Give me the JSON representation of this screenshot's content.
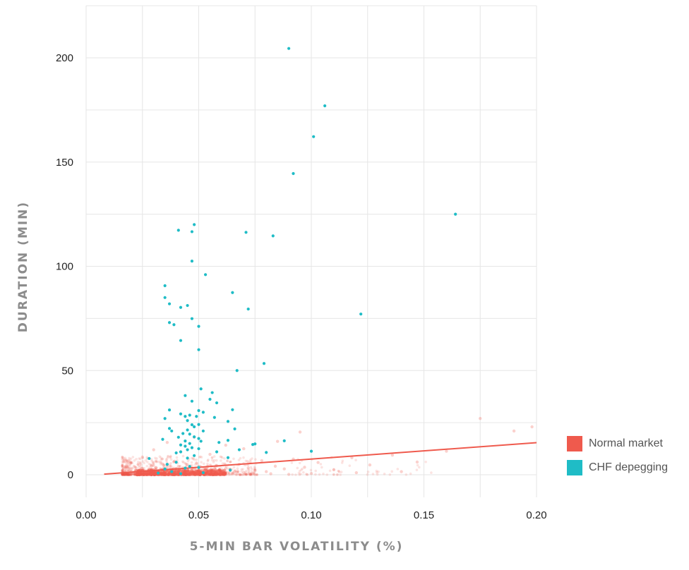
{
  "chart_data": {
    "type": "scatter",
    "title": "",
    "xlabel": "5-MIN BAR VOLATILITY (%)",
    "ylabel": "DURATION (MIN)",
    "xlim": [
      0.0,
      0.2
    ],
    "ylim": [
      -10,
      225
    ],
    "x_ticks": [
      0.0,
      0.05,
      0.1,
      0.15,
      0.2
    ],
    "x_tick_labels": [
      "0.00",
      "0.05",
      "0.10",
      "0.15",
      "0.20"
    ],
    "y_ticks": [
      0,
      50,
      100,
      150,
      200
    ],
    "y_tick_labels": [
      "0",
      "50",
      "100",
      "150",
      "200"
    ],
    "grid": true,
    "legend_position": "right-bottom",
    "series": [
      {
        "name": "Normal market",
        "color": "#ef5a4d",
        "points": [
          [
            0.016,
            0.3
          ],
          [
            0.018,
            0.8
          ],
          [
            0.019,
            0.2
          ],
          [
            0.02,
            1.5
          ],
          [
            0.021,
            0.5
          ],
          [
            0.022,
            2.1
          ],
          [
            0.023,
            0.9
          ],
          [
            0.024,
            0.4
          ],
          [
            0.025,
            1.2
          ],
          [
            0.025,
            3.0
          ],
          [
            0.026,
            0.6
          ],
          [
            0.027,
            1.8
          ],
          [
            0.027,
            0.2
          ],
          [
            0.028,
            2.6
          ],
          [
            0.028,
            0.9
          ],
          [
            0.029,
            1.4
          ],
          [
            0.029,
            4.2
          ],
          [
            0.03,
            0.5
          ],
          [
            0.03,
            2.2
          ],
          [
            0.031,
            1.0
          ],
          [
            0.031,
            3.5
          ],
          [
            0.032,
            0.3
          ],
          [
            0.032,
            1.7
          ],
          [
            0.033,
            2.8
          ],
          [
            0.033,
            0.8
          ],
          [
            0.034,
            1.3
          ],
          [
            0.034,
            5.1
          ],
          [
            0.035,
            0.6
          ],
          [
            0.035,
            2.4
          ],
          [
            0.036,
            1.1
          ],
          [
            0.036,
            3.8
          ],
          [
            0.037,
            0.4
          ],
          [
            0.037,
            1.9
          ],
          [
            0.038,
            2.7
          ],
          [
            0.038,
            0.9
          ],
          [
            0.039,
            1.5
          ],
          [
            0.039,
            6.2
          ],
          [
            0.04,
            0.7
          ],
          [
            0.04,
            2.9
          ],
          [
            0.041,
            1.2
          ],
          [
            0.041,
            4.0
          ],
          [
            0.042,
            0.5
          ],
          [
            0.042,
            2.0
          ],
          [
            0.043,
            3.3
          ],
          [
            0.043,
            1.0
          ],
          [
            0.044,
            1.6
          ],
          [
            0.044,
            0.3
          ],
          [
            0.045,
            2.5
          ],
          [
            0.045,
            4.8
          ],
          [
            0.046,
            0.8
          ],
          [
            0.046,
            1.8
          ],
          [
            0.047,
            3.0
          ],
          [
            0.047,
            0.4
          ],
          [
            0.048,
            2.2
          ],
          [
            0.048,
            1.1
          ],
          [
            0.049,
            5.6
          ],
          [
            0.049,
            0.6
          ],
          [
            0.05,
            1.9
          ],
          [
            0.05,
            3.4
          ],
          [
            0.051,
            0.9
          ],
          [
            0.052,
            2.6
          ],
          [
            0.052,
            1.3
          ],
          [
            0.053,
            0.5
          ],
          [
            0.054,
            3.9
          ],
          [
            0.054,
            1.7
          ],
          [
            0.055,
            0.8
          ],
          [
            0.056,
            2.3
          ],
          [
            0.057,
            1.2
          ],
          [
            0.058,
            4.4
          ],
          [
            0.059,
            0.7
          ],
          [
            0.06,
            2.0
          ],
          [
            0.061,
            1.4
          ],
          [
            0.062,
            3.1
          ],
          [
            0.063,
            0.9
          ],
          [
            0.064,
            2.6
          ],
          [
            0.066,
            1.6
          ],
          [
            0.068,
            5.0
          ],
          [
            0.07,
            1.1
          ],
          [
            0.072,
            3.3
          ],
          [
            0.075,
            2.0
          ],
          [
            0.078,
            6.8
          ],
          [
            0.08,
            1.5
          ],
          [
            0.084,
            4.1
          ],
          [
            0.088,
            2.8
          ],
          [
            0.092,
            7.5
          ],
          [
            0.097,
            3.6
          ],
          [
            0.103,
            5.9
          ],
          [
            0.11,
            2.4
          ],
          [
            0.118,
            8.2
          ],
          [
            0.126,
            4.7
          ],
          [
            0.136,
            9.4
          ],
          [
            0.147,
            6.1
          ],
          [
            0.16,
            11.3
          ],
          [
            0.175,
            27.0
          ],
          [
            0.19,
            21.0
          ],
          [
            0.198,
            23.0
          ],
          [
            0.025,
            8.5
          ],
          [
            0.03,
            12.0
          ],
          [
            0.036,
            15.5
          ],
          [
            0.042,
            11.0
          ],
          [
            0.048,
            18.0
          ],
          [
            0.055,
            9.8
          ],
          [
            0.062,
            14.2
          ],
          [
            0.07,
            12.5
          ],
          [
            0.085,
            16.0
          ],
          [
            0.095,
            20.5
          ],
          [
            0.033,
            0.1
          ],
          [
            0.038,
            0.2
          ],
          [
            0.044,
            0.1
          ],
          [
            0.05,
            0.3
          ],
          [
            0.057,
            0.2
          ],
          [
            0.065,
            0.4
          ],
          [
            0.073,
            0.3
          ],
          [
            0.082,
            0.5
          ],
          [
            0.09,
            0.2
          ],
          [
            0.1,
            0.6
          ],
          [
            0.12,
            1.0
          ],
          [
            0.14,
            1.5
          ]
        ],
        "trend_line": [
          [
            0.008,
            0.3
          ],
          [
            0.2,
            15.4
          ]
        ]
      },
      {
        "name": "CHF depegging",
        "color": "#1fbcc6",
        "points": [
          [
            0.09,
            204.5
          ],
          [
            0.106,
            177.0
          ],
          [
            0.101,
            162.2
          ],
          [
            0.092,
            144.5
          ],
          [
            0.164,
            125.0
          ],
          [
            0.048,
            120.0
          ],
          [
            0.041,
            117.3
          ],
          [
            0.047,
            116.6
          ],
          [
            0.071,
            116.3
          ],
          [
            0.083,
            114.6
          ],
          [
            0.047,
            102.5
          ],
          [
            0.053,
            96.0
          ],
          [
            0.035,
            90.7
          ],
          [
            0.065,
            87.4
          ],
          [
            0.035,
            85.0
          ],
          [
            0.037,
            82.0
          ],
          [
            0.045,
            81.2
          ],
          [
            0.042,
            80.3
          ],
          [
            0.072,
            79.5
          ],
          [
            0.122,
            77.1
          ],
          [
            0.047,
            74.9
          ],
          [
            0.037,
            73.0
          ],
          [
            0.039,
            72.0
          ],
          [
            0.05,
            71.2
          ],
          [
            0.042,
            64.4
          ],
          [
            0.05,
            60.0
          ],
          [
            0.079,
            53.4
          ],
          [
            0.067,
            50.0
          ],
          [
            0.051,
            41.2
          ],
          [
            0.056,
            39.4
          ],
          [
            0.044,
            38.0
          ],
          [
            0.047,
            35.3
          ],
          [
            0.055,
            36.2
          ],
          [
            0.058,
            34.5
          ],
          [
            0.037,
            31.1
          ],
          [
            0.05,
            30.8
          ],
          [
            0.052,
            30.0
          ],
          [
            0.065,
            31.2
          ],
          [
            0.042,
            29.2
          ],
          [
            0.044,
            28.0
          ],
          [
            0.046,
            28.6
          ],
          [
            0.049,
            28.0
          ],
          [
            0.057,
            27.5
          ],
          [
            0.035,
            27.0
          ],
          [
            0.045,
            26.0
          ],
          [
            0.063,
            25.6
          ],
          [
            0.05,
            24.1
          ],
          [
            0.047,
            24.0
          ],
          [
            0.048,
            23.0
          ],
          [
            0.037,
            22.2
          ],
          [
            0.038,
            21.0
          ],
          [
            0.045,
            21.5
          ],
          [
            0.052,
            21.0
          ],
          [
            0.066,
            22.0
          ],
          [
            0.043,
            19.8
          ],
          [
            0.046,
            19.5
          ],
          [
            0.041,
            18.0
          ],
          [
            0.048,
            18.2
          ],
          [
            0.05,
            17.4
          ],
          [
            0.034,
            17.0
          ],
          [
            0.044,
            16.2
          ],
          [
            0.046,
            15.0
          ],
          [
            0.051,
            16.1
          ],
          [
            0.059,
            15.5
          ],
          [
            0.063,
            16.5
          ],
          [
            0.088,
            16.3
          ],
          [
            0.042,
            14.3
          ],
          [
            0.044,
            13.7
          ],
          [
            0.047,
            13.0
          ],
          [
            0.05,
            12.5
          ],
          [
            0.045,
            12.0
          ],
          [
            0.074,
            14.5
          ],
          [
            0.075,
            14.8
          ],
          [
            0.068,
            12.0
          ],
          [
            0.042,
            11.0
          ],
          [
            0.04,
            10.5
          ],
          [
            0.058,
            11.0
          ],
          [
            0.08,
            10.7
          ],
          [
            0.1,
            11.3
          ],
          [
            0.048,
            9.2
          ],
          [
            0.045,
            8.0
          ],
          [
            0.028,
            7.8
          ],
          [
            0.063,
            8.2
          ],
          [
            0.04,
            6.0
          ],
          [
            0.036,
            5.0
          ],
          [
            0.046,
            4.0
          ],
          [
            0.044,
            3.2
          ],
          [
            0.05,
            3.5
          ],
          [
            0.035,
            2.8
          ],
          [
            0.064,
            2.2
          ],
          [
            0.038,
            1.5
          ],
          [
            0.052,
            1.0
          ],
          [
            0.032,
            0.8
          ],
          [
            0.042,
            0.5
          ]
        ]
      }
    ]
  }
}
